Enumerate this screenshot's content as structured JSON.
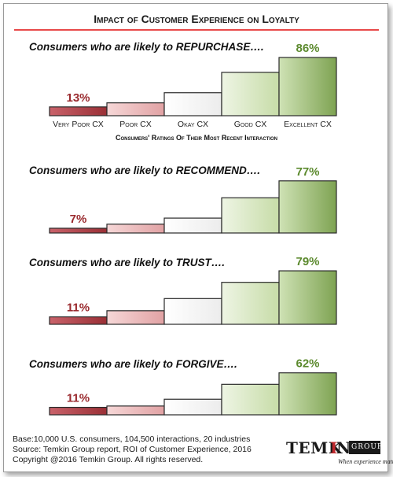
{
  "title": "Impact of Customer Experience on Loyalty",
  "colors": {
    "title_rule": "#e84a4a",
    "low_text": "#9a2a2e",
    "high_text": "#5c8a2e",
    "bar_fills": [
      "#b5444a",
      "#e9b3b4",
      "#f4f4f4",
      "#d9e8c4",
      "#a6c77f"
    ]
  },
  "chart_data": {
    "type": "bar",
    "categories": [
      "Very Poor CX",
      "Poor CX",
      "Okay CX",
      "Good CX",
      "Excellent CX"
    ],
    "xlabel": "Consumers' Ratings Of Their Most Recent Interaction",
    "panels": [
      {
        "label": "Consumers who are likely to REPURCHASE….",
        "labels_shown": [
          "13%",
          "86%"
        ],
        "values": [
          13,
          19,
          34,
          64,
          86
        ]
      },
      {
        "label": "Consumers who are likely to RECOMMEND….",
        "labels_shown": [
          "7%",
          "77%"
        ],
        "values": [
          7,
          13,
          22,
          52,
          77
        ]
      },
      {
        "label": "Consumers who are likely to TRUST….",
        "labels_shown": [
          "11%",
          "79%"
        ],
        "values": [
          11,
          20,
          38,
          62,
          79
        ]
      },
      {
        "label": "Consumers who are likely to FORGIVE….",
        "labels_shown": [
          "11%",
          "62%"
        ],
        "values": [
          11,
          13,
          23,
          45,
          62
        ]
      }
    ]
  },
  "footer": {
    "line1": "Base:10,000 U.S. consumers, 104,500 interactions, 20 industries",
    "line2": "Source: Temkin Group report, ROI of Customer Experience, 2016",
    "line3": "Copyright @2016 Temkin Group. All rights reserved."
  },
  "logo": {
    "word_left": "TEMK",
    "word_mid": "I",
    "word_right": "N",
    "word_group": "GROUP",
    "tagline": "When experience matters"
  }
}
